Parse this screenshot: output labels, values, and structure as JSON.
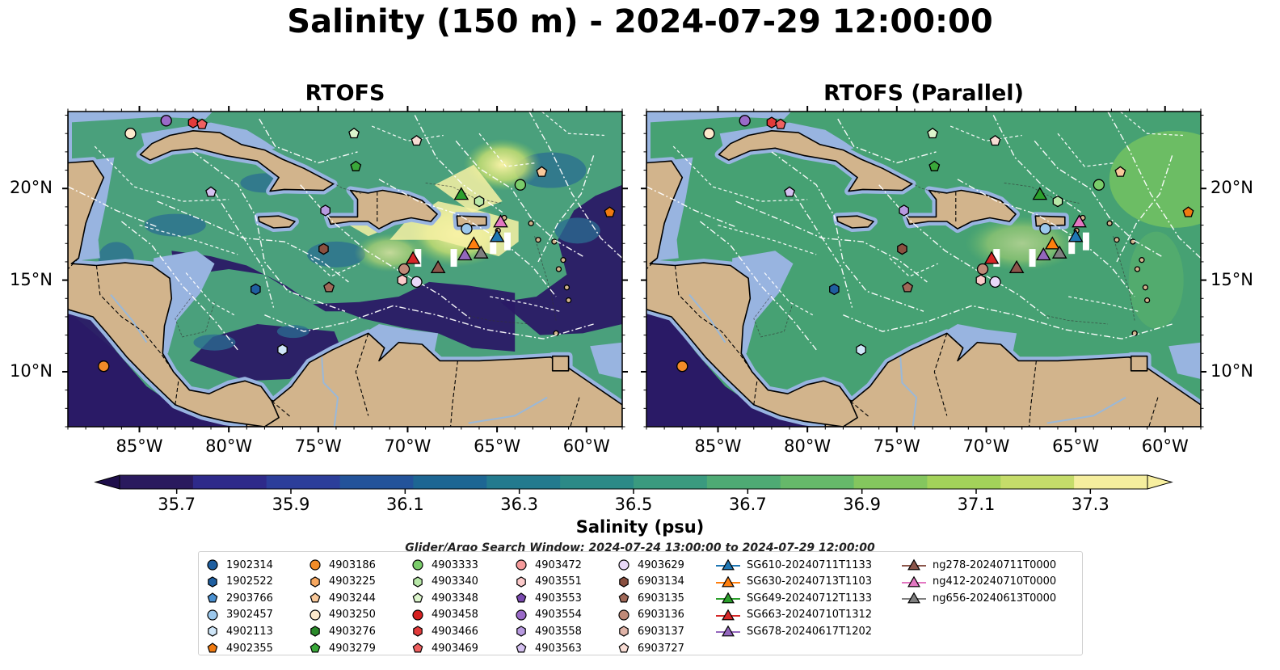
{
  "title": "Salinity (150 m) - 2024-07-29 12:00:00",
  "panels": [
    {
      "title": "RTOFS"
    },
    {
      "title": "RTOFS (Parallel)"
    }
  ],
  "lat_ticks": [
    "20°N",
    "15°N",
    "10°N"
  ],
  "lon_ticks": [
    "85°W",
    "80°W",
    "75°W",
    "70°W",
    "65°W",
    "60°W"
  ],
  "colorbar": {
    "label": "Salinity (psu)",
    "ticks": [
      "35.7",
      "35.9",
      "36.1",
      "36.3",
      "36.5",
      "36.7",
      "36.9",
      "37.1",
      "37.3"
    ],
    "colors": [
      "#2a1a5e",
      "#2e2a8a",
      "#2c3e9a",
      "#23539a",
      "#1d6693",
      "#237a8e",
      "#2c8a87",
      "#3a9a7f",
      "#4eaa74",
      "#66b96a",
      "#84c65e",
      "#a3d25a",
      "#c5dc6a",
      "#f5ee9e"
    ],
    "range": [
      35.6,
      37.4
    ]
  },
  "search_window": "Glider/Argo Search Window: 2024-07-24 13:00:00 to 2024-07-29 12:00:00",
  "colors": {
    "land": "#d2b48c",
    "shelf": "#98b4e0",
    "ocean_left": "#4aa07c",
    "ocean_right": "#46a173",
    "deep_blue": "#2a1a66"
  },
  "legend": [
    {
      "label": "1902314",
      "marker": "circle",
      "color": "#1f5fa0"
    },
    {
      "label": "1902522",
      "marker": "hexagon",
      "color": "#1f5fa0"
    },
    {
      "label": "2903766",
      "marker": "pentagon",
      "color": "#4a90d0"
    },
    {
      "label": "3902457",
      "marker": "circle",
      "color": "#9cc8ec"
    },
    {
      "label": "4902113",
      "marker": "hexagon",
      "color": "#cfe6f8"
    },
    {
      "label": "4902355",
      "marker": "pentagon",
      "color": "#f07a10"
    },
    {
      "label": "4903186",
      "marker": "circle",
      "color": "#f28c28"
    },
    {
      "label": "4903225",
      "marker": "hexagon",
      "color": "#f7a860"
    },
    {
      "label": "4903244",
      "marker": "pentagon",
      "color": "#f8c89a"
    },
    {
      "label": "4903250",
      "marker": "circle",
      "color": "#fde9cc"
    },
    {
      "label": "4903276",
      "marker": "hexagon",
      "color": "#2a8a2a"
    },
    {
      "label": "4903279",
      "marker": "pentagon",
      "color": "#3aa83a"
    },
    {
      "label": "4903333",
      "marker": "circle",
      "color": "#7acc6a"
    },
    {
      "label": "4903340",
      "marker": "hexagon",
      "color": "#b8e8a8"
    },
    {
      "label": "4903348",
      "marker": "pentagon",
      "color": "#dcf5cc"
    },
    {
      "label": "4903458",
      "marker": "circle",
      "color": "#d62020"
    },
    {
      "label": "4903466",
      "marker": "hexagon",
      "color": "#e23a3a"
    },
    {
      "label": "4903469",
      "marker": "pentagon",
      "color": "#f06060"
    },
    {
      "label": "4903472",
      "marker": "circle",
      "color": "#f59a9a"
    },
    {
      "label": "4903551",
      "marker": "hexagon",
      "color": "#fccaca"
    },
    {
      "label": "4903553",
      "marker": "pentagon",
      "color": "#7a4ab0"
    },
    {
      "label": "4903554",
      "marker": "circle",
      "color": "#9a6ac8"
    },
    {
      "label": "4903558",
      "marker": "hexagon",
      "color": "#b89ae0"
    },
    {
      "label": "4903563",
      "marker": "pentagon",
      "color": "#d4c0f0"
    },
    {
      "label": "4903629",
      "marker": "circle",
      "color": "#e8d8f8"
    },
    {
      "label": "6903134",
      "marker": "hexagon",
      "color": "#8a5040"
    },
    {
      "label": "6903135",
      "marker": "pentagon",
      "color": "#a06858"
    },
    {
      "label": "6903136",
      "marker": "circle",
      "color": "#c08a78"
    },
    {
      "label": "6903137",
      "marker": "hexagon",
      "color": "#e0b4a8"
    },
    {
      "label": "6903727",
      "marker": "pentagon",
      "color": "#f8dcd4"
    },
    {
      "label": "SG610-20240711T1133",
      "marker": "triangle",
      "color": "#1f77b4"
    },
    {
      "label": "SG630-20240713T1103",
      "marker": "triangle",
      "color": "#ff7f0e"
    },
    {
      "label": "SG649-20240712T1133",
      "marker": "triangle",
      "color": "#2ca02c"
    },
    {
      "label": "SG663-20240710T1312",
      "marker": "triangle",
      "color": "#d62728"
    },
    {
      "label": "SG678-20240617T1202",
      "marker": "triangle",
      "color": "#9467bd"
    },
    {
      "label": "ng278-20240711T0000",
      "marker": "triangle",
      "color": "#8c564b"
    },
    {
      "label": "ng412-20240710T0000",
      "marker": "triangle",
      "color": "#e377c2"
    },
    {
      "label": "ng656-20240613T0000",
      "marker": "triangle",
      "color": "#7f7f7f"
    }
  ],
  "floats": [
    {
      "id": "4903466",
      "lon": -82.0,
      "lat": 23.6
    },
    {
      "id": "4903554",
      "lon": -83.5,
      "lat": 23.7
    },
    {
      "id": "4903469",
      "lon": -81.5,
      "lat": 23.5
    },
    {
      "id": "4903250",
      "lon": -85.5,
      "lat": 23.0
    },
    {
      "id": "4903348",
      "lon": -73.0,
      "lat": 23.0
    },
    {
      "id": "6903727",
      "lon": -69.5,
      "lat": 22.6
    },
    {
      "id": "4903279",
      "lon": -72.9,
      "lat": 21.2
    },
    {
      "id": "4903244",
      "lon": -62.5,
      "lat": 20.9
    },
    {
      "id": "4903333",
      "lon": -63.7,
      "lat": 20.2
    },
    {
      "id": "4903563",
      "lon": -81.0,
      "lat": 19.8
    },
    {
      "id": "4903558",
      "lon": -74.6,
      "lat": 18.8
    },
    {
      "id": "4903340",
      "lon": -66.0,
      "lat": 19.3
    },
    {
      "id": "4902355",
      "lon": -58.7,
      "lat": 18.7
    },
    {
      "id": "3902457",
      "lon": -66.7,
      "lat": 17.8
    },
    {
      "id": "6903134",
      "lon": -74.7,
      "lat": 16.7
    },
    {
      "id": "6903136",
      "lon": -70.2,
      "lat": 15.6
    },
    {
      "id": "4903551",
      "lon": -70.3,
      "lat": 15.0
    },
    {
      "id": "4903629",
      "lon": -69.5,
      "lat": 14.9
    },
    {
      "id": "6903135",
      "lon": -74.4,
      "lat": 14.6
    },
    {
      "id": "1902522",
      "lon": -78.5,
      "lat": 14.5
    },
    {
      "id": "4902113",
      "lon": -77.0,
      "lat": 11.2
    },
    {
      "id": "4903186",
      "lon": -87.0,
      "lat": 10.3
    }
  ],
  "gliders": [
    {
      "id": "SG649-20240712T1133",
      "lon": -67.0,
      "lat": 19.7
    },
    {
      "id": "ng412-20240710T0000",
      "lon": -64.8,
      "lat": 18.2
    },
    {
      "id": "SG610-20240711T1133",
      "lon": -65.0,
      "lat": 17.4
    },
    {
      "id": "SG630-20240713T1103",
      "lon": -66.3,
      "lat": 17.0
    },
    {
      "id": "ng656-20240613T0000",
      "lon": -65.9,
      "lat": 16.5
    },
    {
      "id": "SG678-20240617T1202",
      "lon": -66.8,
      "lat": 16.4
    },
    {
      "id": "SG663-20240710T1312",
      "lon": -69.7,
      "lat": 16.2
    },
    {
      "id": "ng278-20240711T0000",
      "lon": -68.3,
      "lat": 15.7
    }
  ]
}
